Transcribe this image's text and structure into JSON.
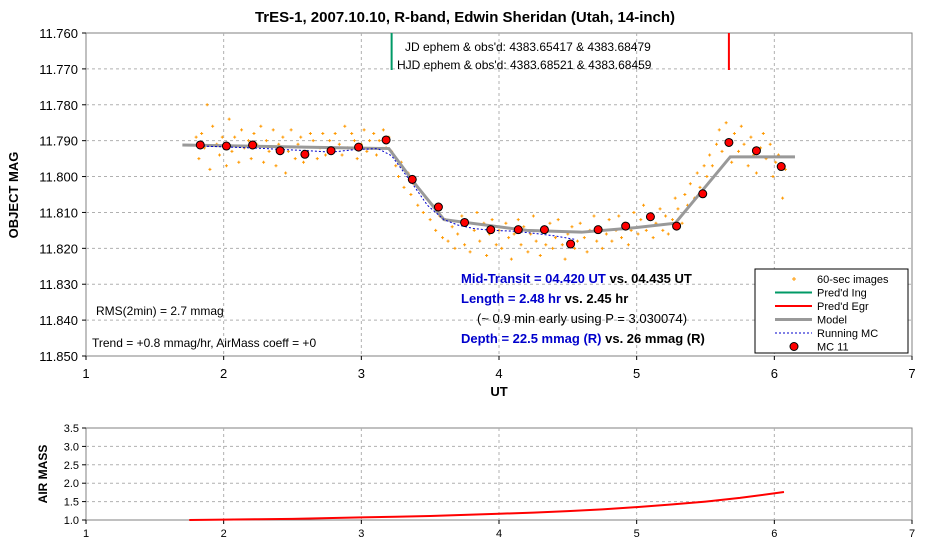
{
  "chart_data": [
    {
      "type": "scatter",
      "title": "TrES-1, 2007.10.10, R-band, Edwin Sheridan (Utah, 14-inch)",
      "xlabel": "UT",
      "ylabel": "OBJECT MAG",
      "xlim": [
        1,
        7
      ],
      "ylim": [
        11.76,
        11.85
      ],
      "y_inverted": true,
      "grid": true,
      "x_ticks": [
        "1",
        "2",
        "3",
        "4",
        "5",
        "6",
        "7"
      ],
      "y_ticks": [
        "11.760",
        "11.770",
        "11.780",
        "11.790",
        "11.800",
        "11.810",
        "11.820",
        "11.830",
        "11.840",
        "11.850"
      ],
      "legend_position": "bottom-right",
      "annotations": {
        "jd": "JD ephem & obs'd: 4383.65417 & 4383.68479",
        "hjd": "HJD ephem & obs'd: 4383.68521 & 4383.68459",
        "rms": "RMS(2min) = 2.7 mmag",
        "trend": "Trend = +0.8 mmag/hr, AirMass coeff = +0",
        "mid_b": "Mid-Transit = 04.420 UT",
        "mid_r": " vs. 04.435 UT",
        "len_b": "Length = 2.48 hr",
        "len_r": " vs. 2.45 hr",
        "early": "(~ 0.9 min early using P = 3.030074)",
        "depth_b": "Depth = 22.5 mmag (R)",
        "depth_r": " vs. 26 mmag  (R)"
      },
      "ingress_x": 3.22,
      "egress_x": 5.67,
      "series": [
        {
          "name": "60-sec images",
          "color": "#ff9900",
          "x": [
            1.8,
            1.82,
            1.84,
            1.86,
            1.88,
            1.9,
            1.92,
            1.95,
            1.97,
            1.99,
            2.02,
            2.04,
            2.06,
            2.08,
            2.11,
            2.13,
            2.15,
            2.18,
            2.2,
            2.22,
            2.24,
            2.27,
            2.29,
            2.31,
            2.33,
            2.36,
            2.38,
            2.4,
            2.43,
            2.45,
            2.47,
            2.49,
            2.52,
            2.54,
            2.56,
            2.58,
            2.61,
            2.63,
            2.65,
            2.68,
            2.7,
            2.72,
            2.74,
            2.77,
            2.79,
            2.81,
            2.84,
            2.86,
            2.88,
            2.9,
            2.93,
            2.95,
            2.97,
            3.0,
            3.02,
            3.04,
            3.06,
            3.09,
            3.11,
            3.13,
            3.16,
            3.18,
            3.2,
            3.22,
            3.25,
            3.27,
            3.29,
            3.31,
            3.34,
            3.36,
            3.38,
            3.41,
            3.43,
            3.45,
            3.47,
            3.5,
            3.52,
            3.54,
            3.57,
            3.59,
            3.61,
            3.63,
            3.66,
            3.68,
            3.7,
            3.73,
            3.75,
            3.77,
            3.79,
            3.82,
            3.84,
            3.86,
            3.89,
            3.91,
            3.93,
            3.95,
            3.98,
            4.0,
            4.02,
            4.05,
            4.07,
            4.09,
            4.11,
            4.14,
            4.16,
            4.18,
            4.21,
            4.23,
            4.25,
            4.27,
            4.3,
            4.32,
            4.34,
            4.37,
            4.39,
            4.41,
            4.43,
            4.46,
            4.48,
            4.5,
            4.53,
            4.55,
            4.57,
            4.59,
            4.62,
            4.64,
            4.66,
            4.69,
            4.71,
            4.73,
            4.75,
            4.78,
            4.8,
            4.82,
            4.85,
            4.87,
            4.89,
            4.91,
            4.94,
            4.96,
            4.98,
            5.01,
            5.03,
            5.05,
            5.07,
            5.1,
            5.12,
            5.14,
            5.17,
            5.19,
            5.21,
            5.23,
            5.26,
            5.28,
            5.3,
            5.33,
            5.35,
            5.37,
            5.39,
            5.42,
            5.44,
            5.46,
            5.49,
            5.51,
            5.53,
            5.55,
            5.58,
            5.6,
            5.62,
            5.65,
            5.67,
            5.69,
            5.71,
            5.74,
            5.76,
            5.78,
            5.81,
            5.83,
            5.85,
            5.87,
            5.9,
            5.92,
            5.94,
            5.97,
            5.99,
            6.01,
            6.03,
            6.06,
            6.08
          ],
          "y": [
            11.789,
            11.795,
            11.788,
            11.792,
            11.78,
            11.798,
            11.786,
            11.791,
            11.794,
            11.789,
            11.797,
            11.784,
            11.793,
            11.789,
            11.796,
            11.787,
            11.792,
            11.79,
            11.795,
            11.788,
            11.791,
            11.786,
            11.796,
            11.79,
            11.793,
            11.787,
            11.797,
            11.791,
            11.789,
            11.799,
            11.793,
            11.787,
            11.795,
            11.791,
            11.789,
            11.796,
            11.793,
            11.788,
            11.79,
            11.795,
            11.792,
            11.788,
            11.794,
            11.79,
            11.793,
            11.788,
            11.791,
            11.794,
            11.786,
            11.792,
            11.788,
            11.79,
            11.795,
            11.791,
            11.787,
            11.793,
            11.79,
            11.788,
            11.794,
            11.79,
            11.787,
            11.792,
            11.789,
            11.793,
            11.797,
            11.8,
            11.796,
            11.803,
            11.799,
            11.805,
            11.802,
            11.808,
            11.804,
            11.81,
            11.806,
            11.812,
            11.808,
            11.815,
            11.811,
            11.817,
            11.812,
            11.818,
            11.814,
            11.82,
            11.816,
            11.811,
            11.819,
            11.813,
            11.821,
            11.815,
            11.81,
            11.818,
            11.813,
            11.822,
            11.816,
            11.812,
            11.819,
            11.815,
            11.82,
            11.813,
            11.817,
            11.823,
            11.816,
            11.812,
            11.819,
            11.814,
            11.821,
            11.816,
            11.811,
            11.818,
            11.822,
            11.815,
            11.819,
            11.813,
            11.82,
            11.817,
            11.812,
            11.819,
            11.823,
            11.816,
            11.814,
            11.82,
            11.818,
            11.813,
            11.817,
            11.821,
            11.815,
            11.811,
            11.818,
            11.814,
            11.82,
            11.816,
            11.812,
            11.818,
            11.815,
            11.811,
            11.817,
            11.813,
            11.819,
            11.815,
            11.81,
            11.816,
            11.812,
            11.808,
            11.815,
            11.811,
            11.817,
            11.813,
            11.809,
            11.815,
            11.811,
            11.816,
            11.812,
            11.806,
            11.809,
            11.813,
            11.805,
            11.808,
            11.802,
            11.806,
            11.799,
            11.803,
            11.797,
            11.8,
            11.794,
            11.797,
            11.791,
            11.787,
            11.793,
            11.785,
            11.79,
            11.796,
            11.788,
            11.793,
            11.786,
            11.791,
            11.797,
            11.789,
            11.794,
            11.799,
            11.792,
            11.788,
            11.795,
            11.791,
            11.8,
            11.796,
            11.794,
            11.806,
            11.798
          ]
        },
        {
          "name": "Running MC",
          "color": "#0000cc",
          "x": [
            1.85,
            2.05,
            2.25,
            2.45,
            2.62,
            2.78,
            2.95,
            3.12,
            3.22,
            3.38,
            3.48,
            3.6,
            3.7,
            3.82,
            3.95,
            4.1,
            4.25,
            4.4,
            4.55
          ],
          "y": [
            11.7915,
            11.7918,
            11.7921,
            11.7925,
            11.7928,
            11.7932,
            11.7925,
            11.7922,
            11.7942,
            11.8025,
            11.808,
            11.812,
            11.8135,
            11.8145,
            11.815,
            11.8152,
            11.8158,
            11.8165,
            11.8175
          ]
        },
        {
          "name": "MC 11",
          "color": "#ff0000",
          "x": [
            1.83,
            2.02,
            2.21,
            2.41,
            2.59,
            2.78,
            2.98,
            3.18,
            3.37,
            3.56,
            3.75,
            3.94,
            4.14,
            4.33,
            4.52,
            4.72,
            4.92,
            5.1,
            5.29,
            5.48,
            5.67,
            5.87,
            6.05
          ],
          "y": [
            11.7912,
            11.7915,
            11.7912,
            11.7928,
            11.7938,
            11.7928,
            11.7918,
            11.7898,
            11.8008,
            11.8085,
            11.8128,
            11.8148,
            11.8148,
            11.8148,
            11.8188,
            11.8148,
            11.8138,
            11.8112,
            11.8138,
            11.8048,
            11.7905,
            11.7928,
            11.7972
          ]
        },
        {
          "name": "Model",
          "color": "#999999",
          "x": [
            1.7,
            3.2,
            3.4,
            3.6,
            4.2,
            4.6,
            5.0,
            5.28,
            5.68,
            6.15
          ],
          "y": [
            11.7912,
            11.7922,
            11.8025,
            11.812,
            11.815,
            11.8155,
            11.8142,
            11.813,
            11.7945,
            11.7945
          ]
        },
        {
          "name": "Pred'd Ing",
          "color": "#009966",
          "x": [],
          "y": []
        },
        {
          "name": "Pred'd Egr",
          "color": "#ff0000",
          "x": [],
          "y": []
        }
      ]
    },
    {
      "type": "line",
      "ylabel": "AIR MASS",
      "xlim": [
        1,
        7
      ],
      "ylim": [
        1.0,
        3.5
      ],
      "grid": true,
      "x_ticks": [
        "1",
        "2",
        "3",
        "4",
        "5",
        "6",
        "7"
      ],
      "y_ticks": [
        "1.0",
        "1.5",
        "2.0",
        "2.5",
        "3.0",
        "3.5"
      ],
      "series": [
        {
          "color": "#ff0000",
          "x": [
            1.75,
            2.0,
            2.25,
            2.5,
            2.75,
            3.0,
            3.25,
            3.5,
            3.75,
            4.0,
            4.25,
            4.5,
            4.75,
            5.0,
            5.25,
            5.5,
            5.75,
            6.07
          ],
          "y": [
            1.0,
            1.01,
            1.02,
            1.03,
            1.05,
            1.07,
            1.09,
            1.11,
            1.14,
            1.17,
            1.2,
            1.24,
            1.29,
            1.35,
            1.42,
            1.5,
            1.6,
            1.76
          ]
        }
      ]
    }
  ]
}
